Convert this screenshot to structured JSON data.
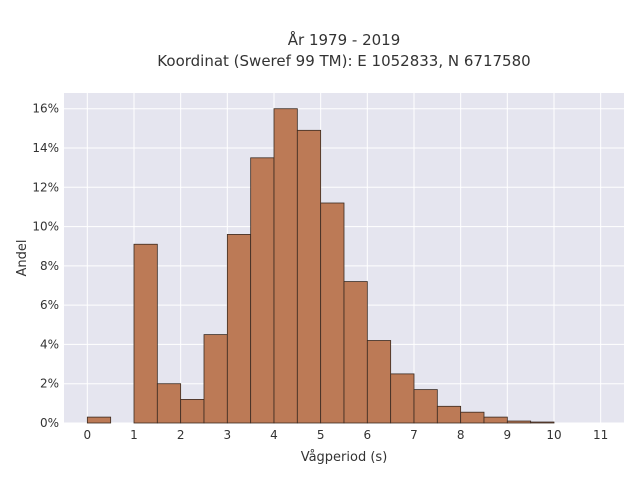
{
  "chart_data": {
    "type": "bar",
    "title_line1": "År 1979 - 2019",
    "title_line2": "Koordinat (Sweref 99 TM): E 1052833, N 6717580",
    "xlabel": "Vågperiod (s)",
    "ylabel": "Andel",
    "xlim": [
      -0.5,
      11.5
    ],
    "ylim": [
      0,
      16.8
    ],
    "x_ticks": [
      0,
      1,
      2,
      3,
      4,
      5,
      6,
      7,
      8,
      9,
      10,
      11
    ],
    "y_ticks": [
      0,
      2,
      4,
      6,
      8,
      10,
      12,
      14,
      16
    ],
    "y_tick_labels": [
      "0%",
      "2%",
      "4%",
      "6%",
      "8%",
      "10%",
      "12%",
      "14%",
      "16%"
    ],
    "bin_width": 0.5,
    "bins": [
      {
        "start": 0.0,
        "value": 0.3
      },
      {
        "start": 1.0,
        "value": 9.1
      },
      {
        "start": 1.5,
        "value": 2.0
      },
      {
        "start": 2.0,
        "value": 1.2
      },
      {
        "start": 2.5,
        "value": 4.5
      },
      {
        "start": 3.0,
        "value": 9.6
      },
      {
        "start": 3.5,
        "value": 13.5
      },
      {
        "start": 4.0,
        "value": 16.0
      },
      {
        "start": 4.5,
        "value": 14.9
      },
      {
        "start": 5.0,
        "value": 11.2
      },
      {
        "start": 5.5,
        "value": 7.2
      },
      {
        "start": 6.0,
        "value": 4.2
      },
      {
        "start": 6.5,
        "value": 2.5
      },
      {
        "start": 7.0,
        "value": 1.7
      },
      {
        "start": 7.5,
        "value": 0.85
      },
      {
        "start": 8.0,
        "value": 0.55
      },
      {
        "start": 8.5,
        "value": 0.3
      },
      {
        "start": 9.0,
        "value": 0.1
      },
      {
        "start": 9.5,
        "value": 0.05
      }
    ],
    "bar_color": "#bc7a56",
    "bar_edge_color": "#3a2a20",
    "plot_background": "#e5e5ef",
    "grid_color": "#ffffff",
    "grid": true
  }
}
